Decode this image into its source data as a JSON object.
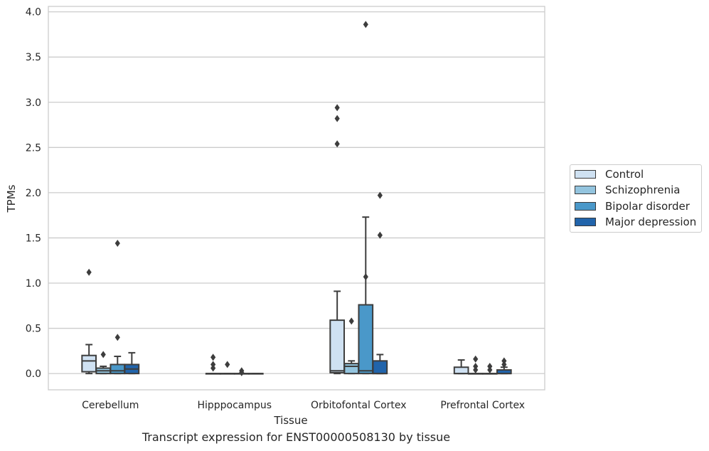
{
  "caption": "Transcript expression for ENST00000508130 by tissue",
  "colors": {
    "Control": "#cfe1f2",
    "Schizophrenia": "#93c4de",
    "Bipolar disorder": "#4a98c9",
    "Major depression": "#2164ab",
    "grid": "#cccccc",
    "box_edge": "#3d3d3d"
  },
  "chart_data": {
    "type": "box",
    "xlabel": "Tissue",
    "ylabel": "TPMs",
    "ylim": [
      -0.18,
      4.06
    ],
    "yticks": [
      "0.0",
      "0.5",
      "1.0",
      "1.5",
      "2.0",
      "2.5",
      "3.0",
      "3.5",
      "4.0"
    ],
    "grid": "horizontal",
    "legend_position": "right",
    "categories": [
      "Cerebellum",
      "Hipppocampus",
      "Orbitofontal Cortex",
      "Prefrontal Cortex"
    ],
    "series": [
      {
        "name": "Control",
        "boxes": [
          {
            "whislo": 0.0,
            "q1": 0.02,
            "med": 0.14,
            "q3": 0.2,
            "whishi": 0.32,
            "fliers": [
              1.12
            ]
          },
          {
            "whislo": 0.0,
            "q1": 0.0,
            "med": 0.0,
            "q3": 0.0,
            "whishi": 0.0,
            "fliers": [
              0.18,
              0.1,
              0.06
            ]
          },
          {
            "whislo": 0.0,
            "q1": 0.01,
            "med": 0.03,
            "q3": 0.59,
            "whishi": 0.91,
            "fliers": [
              2.94,
              2.82,
              2.54
            ]
          },
          {
            "whislo": 0.0,
            "q1": 0.0,
            "med": 0.0,
            "q3": 0.07,
            "whishi": 0.15,
            "fliers": []
          }
        ]
      },
      {
        "name": "Schizophrenia",
        "boxes": [
          {
            "whislo": 0.0,
            "q1": 0.0,
            "med": 0.03,
            "q3": 0.06,
            "whishi": 0.08,
            "fliers": [
              0.21
            ]
          },
          {
            "whislo": 0.0,
            "q1": 0.0,
            "med": 0.0,
            "q3": 0.0,
            "whishi": 0.0,
            "fliers": [
              0.1
            ]
          },
          {
            "whislo": 0.0,
            "q1": 0.0,
            "med": 0.08,
            "q3": 0.11,
            "whishi": 0.14,
            "fliers": [
              0.58
            ]
          },
          {
            "whislo": 0.0,
            "q1": 0.0,
            "med": 0.0,
            "q3": 0.0,
            "whishi": 0.0,
            "fliers": [
              0.16,
              0.08,
              0.04
            ]
          }
        ]
      },
      {
        "name": "Bipolar disorder",
        "boxes": [
          {
            "whislo": 0.0,
            "q1": 0.0,
            "med": 0.03,
            "q3": 0.1,
            "whishi": 0.19,
            "fliers": [
              1.44,
              0.4
            ]
          },
          {
            "whislo": 0.0,
            "q1": 0.0,
            "med": 0.0,
            "q3": 0.0,
            "whishi": 0.0,
            "fliers": [
              0.03,
              0.01
            ]
          },
          {
            "whislo": 0.0,
            "q1": 0.0,
            "med": 0.03,
            "q3": 0.76,
            "whishi": 1.73,
            "fliers": [
              3.86,
              1.07
            ]
          },
          {
            "whislo": 0.0,
            "q1": 0.0,
            "med": 0.0,
            "q3": 0.0,
            "whishi": 0.0,
            "fliers": [
              0.08,
              0.04
            ]
          }
        ]
      },
      {
        "name": "Major depression",
        "boxes": [
          {
            "whislo": 0.0,
            "q1": 0.0,
            "med": 0.05,
            "q3": 0.1,
            "whishi": 0.23,
            "fliers": []
          },
          {
            "whislo": 0.0,
            "q1": 0.0,
            "med": 0.0,
            "q3": 0.0,
            "whishi": 0.0,
            "fliers": []
          },
          {
            "whislo": 0.0,
            "q1": 0.0,
            "med": 0.0,
            "q3": 0.14,
            "whishi": 0.21,
            "fliers": [
              1.97,
              1.53
            ]
          },
          {
            "whislo": 0.0,
            "q1": 0.0,
            "med": 0.0,
            "q3": 0.04,
            "whishi": 0.07,
            "fliers": [
              0.14,
              0.1
            ]
          }
        ]
      }
    ]
  }
}
